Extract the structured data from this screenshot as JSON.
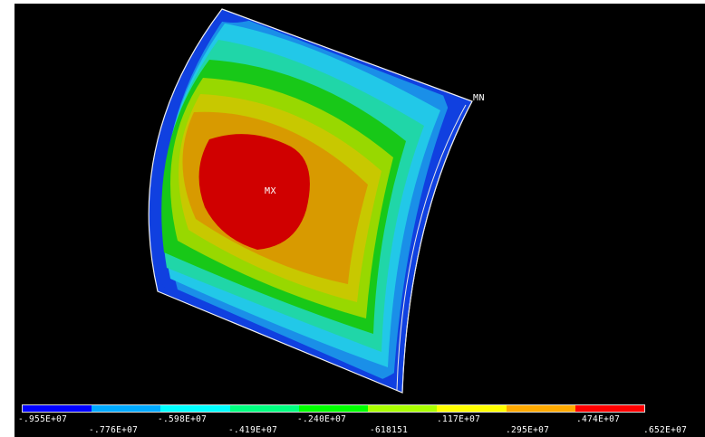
{
  "markers": {
    "max_label": "MX",
    "min_label": "MN"
  },
  "contour_colors": [
    "#0000ff",
    "#0080ff",
    "#00c8ff",
    "#00e6a0",
    "#00d000",
    "#80e000",
    "#d0d000",
    "#e09000",
    "#ff0000",
    "#c80000"
  ],
  "legend": {
    "swatches": [
      "#0000ff",
      "#00aaff",
      "#00ffff",
      "#00ff80",
      "#00ff00",
      "#aaff00",
      "#ffff00",
      "#ffaa00",
      "#ff0000"
    ],
    "labels": [
      "-.955E+07",
      "-.776E+07",
      "-.598E+07",
      "-.419E+07",
      "-.240E+07",
      "-618151",
      ".117E+07",
      ".295E+07",
      ".474E+07",
      ".652E+07"
    ]
  }
}
